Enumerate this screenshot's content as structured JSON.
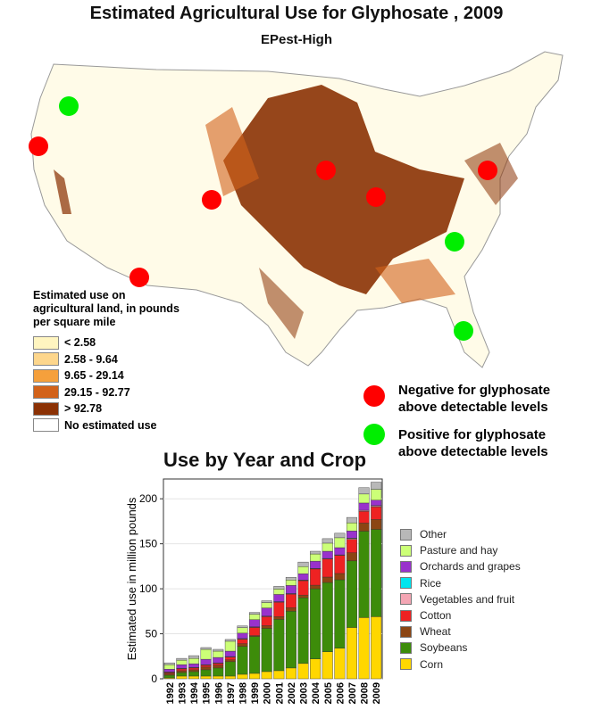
{
  "title": "Estimated Agricultural Use for Glyphosate , 2009",
  "subtitle": "EPest-High",
  "map_legend": {
    "heading": "Estimated use on agricultural land, in pounds per square mile",
    "items": [
      {
        "label": "< 2.58",
        "color": "#fff5c0"
      },
      {
        "label": "2.58 - 9.64",
        "color": "#fdd68c"
      },
      {
        "label": "9.65 - 29.14",
        "color": "#f5a03c"
      },
      {
        "label": "29.15 - 92.77",
        "color": "#d2621a"
      },
      {
        "label": "> 92.78",
        "color": "#8b3104"
      },
      {
        "label": "No estimated use",
        "color": "#ffffff"
      }
    ]
  },
  "sample_key": {
    "negative": {
      "label": "Negative for glyphosate above detectable levels",
      "color": "#ff0000"
    },
    "positive": {
      "label": "Positive for glyphosate above detectable levels",
      "color": "#00ee00"
    }
  },
  "chart_data": {
    "type": "bar",
    "stacked": true,
    "title": "Use by Year and Crop",
    "xlabel": "",
    "ylabel": "Estimated use in million pounds",
    "ylim": [
      0,
      222
    ],
    "yticks": [
      0,
      50,
      100,
      150,
      200
    ],
    "grid": true,
    "legend_position": "right",
    "categories": [
      "1992",
      "1993",
      "1994",
      "1995",
      "1996",
      "1997",
      "1998",
      "1999",
      "2000",
      "2001",
      "2002",
      "2003",
      "2004",
      "2005",
      "2006",
      "2007",
      "2008",
      "2009"
    ],
    "series": [
      {
        "name": "Corn",
        "color": "#ffd700",
        "values": [
          1,
          3,
          3,
          3,
          3,
          3,
          5,
          6,
          8,
          9,
          12,
          17,
          22,
          30,
          34,
          57,
          68,
          69
        ]
      },
      {
        "name": "Soybeans",
        "color": "#3d8c0a",
        "values": [
          3,
          4,
          5,
          7,
          9,
          16,
          31,
          41,
          48,
          57,
          63,
          73,
          78,
          77,
          76,
          74,
          96,
          97
        ]
      },
      {
        "name": "Wheat",
        "color": "#8b4513",
        "values": [
          2,
          2,
          2,
          3,
          3,
          2,
          3,
          1,
          3,
          3,
          4,
          3,
          4,
          6,
          7,
          9,
          9,
          11
        ]
      },
      {
        "name": "Cotton",
        "color": "#ee2222",
        "values": [
          1,
          2,
          2,
          2,
          2,
          3,
          5,
          9,
          10,
          16,
          15,
          16,
          18,
          20,
          20,
          15,
          13,
          14
        ]
      },
      {
        "name": "Vegetables and fruit",
        "color": "#f4a6b4",
        "values": [
          0.5,
          0.5,
          0.5,
          0.5,
          0.5,
          0.5,
          0.5,
          0.5,
          0.5,
          0.5,
          0.5,
          0.5,
          0.5,
          0.5,
          0.5,
          1,
          1,
          1
        ]
      },
      {
        "name": "Rice",
        "color": "#00e5ee",
        "values": [
          0.2,
          0.2,
          0.2,
          0.2,
          0.2,
          0.2,
          0.2,
          0.2,
          0.2,
          0.2,
          0.2,
          0.2,
          0.2,
          0.2,
          0.2,
          0.3,
          0.3,
          0.5
        ]
      },
      {
        "name": "Orchards and grapes",
        "color": "#9932cc",
        "values": [
          3,
          4,
          4,
          6,
          6,
          6,
          6,
          8,
          9,
          8,
          9,
          7,
          8,
          8,
          8,
          8,
          8,
          6
        ]
      },
      {
        "name": "Pasture and hay",
        "color": "#ccff77",
        "values": [
          5,
          5,
          6,
          11,
          7,
          11,
          6,
          6,
          6,
          6,
          6,
          8,
          8,
          9,
          11,
          9,
          10,
          12
        ]
      },
      {
        "name": "Other",
        "color": "#b8b8b8",
        "values": [
          2,
          2,
          3,
          2,
          2,
          2,
          2,
          2,
          2,
          3,
          3,
          5,
          3,
          5,
          5,
          6,
          7,
          8
        ]
      }
    ]
  }
}
